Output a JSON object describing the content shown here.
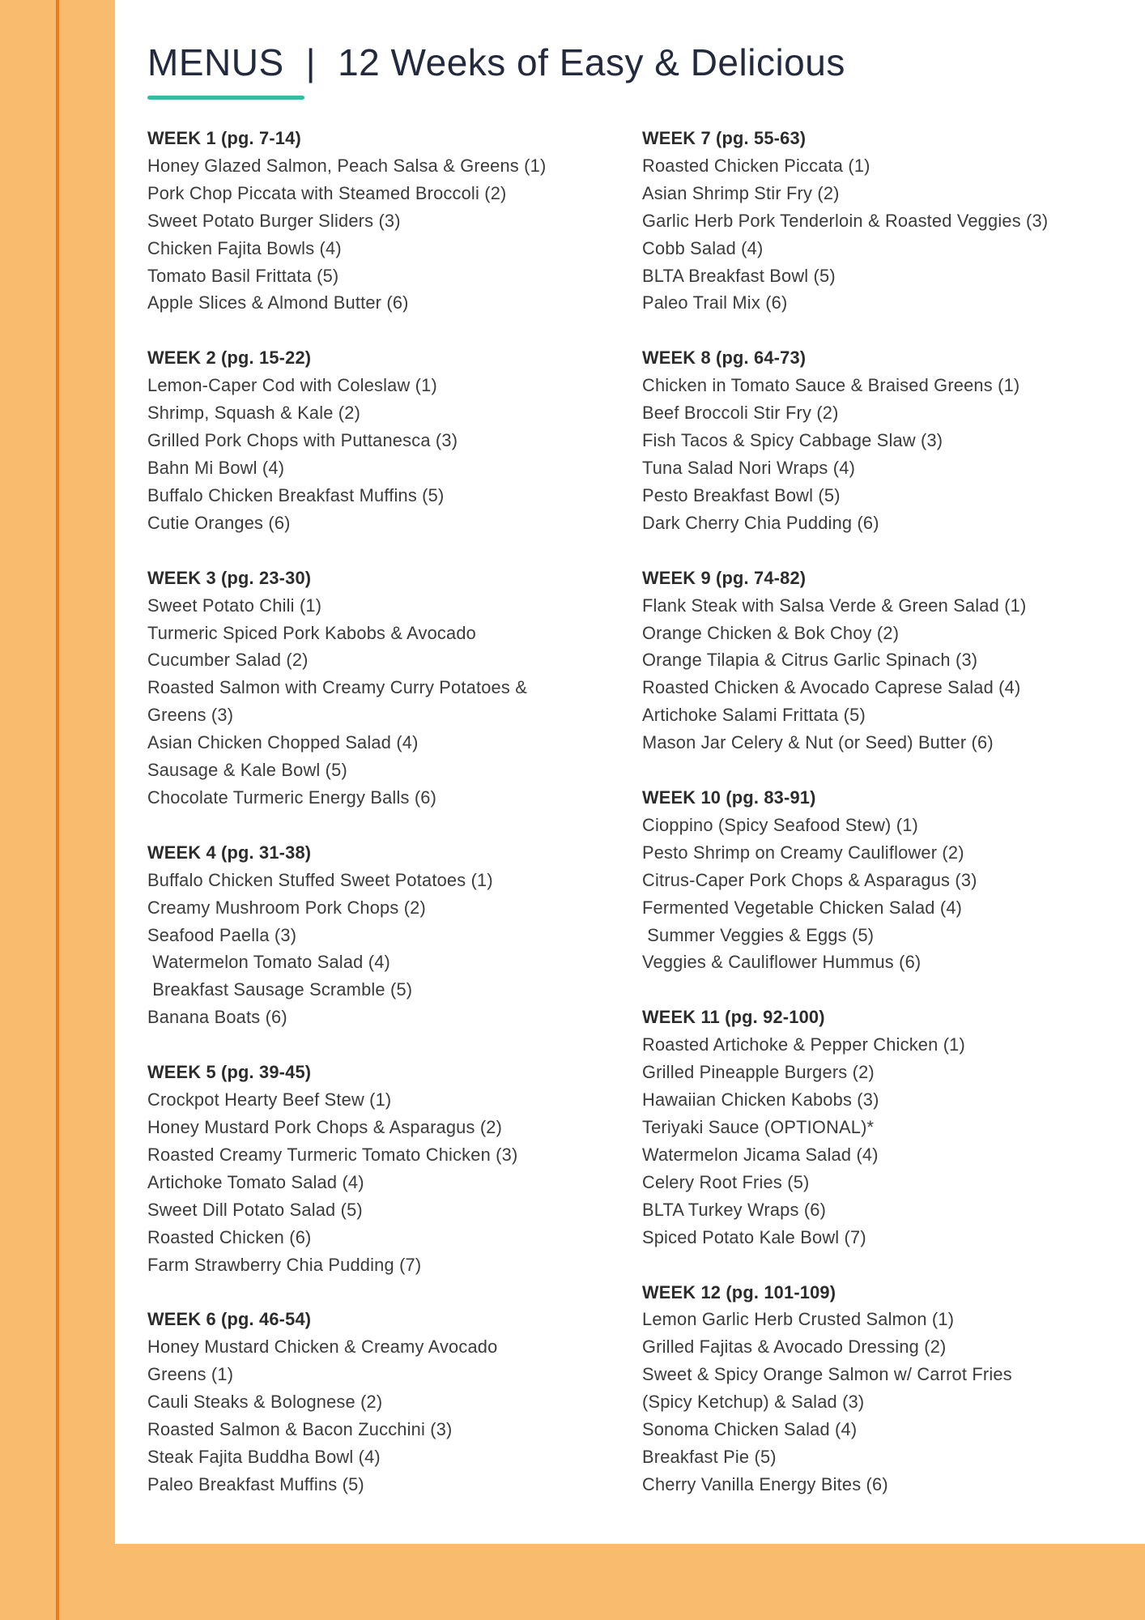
{
  "title": {
    "menus_label": "MENUS",
    "separator": "|",
    "subtitle": "12 Weeks of Easy & Delicious"
  },
  "accent_colors": {
    "sidebar_orange": "#f9bc6f",
    "sidebar_line_orange": "#e87e1e",
    "underline_teal": "#35bda2",
    "title_navy": "#232a3e",
    "header_text": "#2b2b2b",
    "body_text": "#3b3b3b"
  },
  "columns": {
    "left": [
      {
        "header": "WEEK 1 (pg. 7-14)",
        "lines": [
          "Honey Glazed Salmon, Peach Salsa & Greens (1)",
          "Pork Chop Piccata with Steamed Broccoli (2)",
          "Sweet Potato Burger Sliders (3)",
          "Chicken Fajita Bowls (4)",
          "Tomato Basil Frittata (5)",
          "Apple Slices & Almond Butter (6)"
        ]
      },
      {
        "header": "WEEK 2 (pg. 15-22)",
        "lines": [
          "Lemon-Caper Cod with Coleslaw (1)",
          "Shrimp, Squash & Kale (2)",
          "Grilled Pork Chops with Puttanesca (3)",
          "Bahn Mi Bowl (4)",
          "Buffalo Chicken Breakfast Muffins (5)",
          "Cutie Oranges (6)"
        ]
      },
      {
        "header": "WEEK 3 (pg. 23-30)",
        "lines": [
          "Sweet Potato Chili (1)",
          "Turmeric Spiced Pork Kabobs & Avocado",
          "Cucumber Salad (2)",
          "Roasted Salmon with Creamy Curry Potatoes &",
          "Greens (3)",
          "Asian Chicken Chopped Salad (4)",
          "Sausage & Kale Bowl (5)",
          "Chocolate Turmeric Energy Balls (6)"
        ]
      },
      {
        "header": "WEEK 4 (pg. 31-38)",
        "lines": [
          "Buffalo Chicken Stuffed Sweet Potatoes (1)",
          "Creamy Mushroom Pork Chops (2)",
          "Seafood Paella (3)",
          " Watermelon Tomato Salad (4)",
          " Breakfast Sausage Scramble (5)",
          "Banana Boats (6)"
        ]
      },
      {
        "header": "WEEK 5 (pg. 39-45)",
        "lines": [
          "Crockpot Hearty Beef Stew (1)",
          "Honey Mustard Pork Chops & Asparagus (2)",
          "Roasted Creamy Turmeric Tomato Chicken (3)",
          "Artichoke Tomato Salad (4)",
          "Sweet Dill Potato Salad (5)",
          "Roasted Chicken (6)",
          "Farm Strawberry Chia Pudding (7)"
        ]
      },
      {
        "header": "WEEK 6 (pg. 46-54)",
        "lines": [
          "Honey Mustard Chicken & Creamy Avocado",
          "Greens (1)",
          "Cauli Steaks & Bolognese (2)",
          "Roasted Salmon & Bacon Zucchini (3)",
          "Steak Fajita Buddha Bowl (4)",
          "Paleo Breakfast Muffins (5)"
        ]
      }
    ],
    "right": [
      {
        "header": "WEEK 7 (pg. 55-63)",
        "lines": [
          "Roasted Chicken Piccata (1)",
          "Asian Shrimp Stir Fry (2)",
          "Garlic Herb Pork Tenderloin & Roasted Veggies (3)",
          "Cobb Salad (4)",
          "BLTA Breakfast Bowl (5)",
          "Paleo Trail Mix (6)"
        ]
      },
      {
        "header": "WEEK 8 (pg. 64-73)",
        "lines": [
          "Chicken in Tomato Sauce & Braised Greens (1)",
          "Beef Broccoli Stir Fry (2)",
          "Fish Tacos & Spicy Cabbage Slaw (3)",
          "Tuna Salad Nori Wraps (4)",
          "Pesto Breakfast Bowl (5)",
          "Dark Cherry Chia Pudding (6)"
        ]
      },
      {
        "header": "WEEK 9 (pg. 74-82)",
        "lines": [
          "Flank Steak with Salsa Verde & Green Salad (1)",
          "Orange Chicken & Bok Choy (2)",
          "Orange Tilapia & Citrus Garlic Spinach (3)",
          "Roasted Chicken & Avocado Caprese Salad (4)",
          "Artichoke Salami Frittata (5)",
          "Mason Jar Celery & Nut (or Seed) Butter (6)"
        ]
      },
      {
        "header": "WEEK 10 (pg. 83-91)",
        "lines": [
          "Cioppino (Spicy Seafood Stew) (1)",
          "Pesto Shrimp on Creamy Cauliflower (2)",
          "Citrus-Caper Pork Chops & Asparagus (3)",
          "Fermented Vegetable Chicken Salad (4)",
          " Summer Veggies & Eggs (5)",
          "Veggies & Cauliflower Hummus (6)"
        ]
      },
      {
        "header": "WEEK 11 (pg. 92-100)",
        "lines": [
          "Roasted Artichoke & Pepper Chicken (1)",
          "Grilled Pineapple Burgers (2)",
          "Hawaiian Chicken Kabobs (3)",
          "Teriyaki Sauce (OPTIONAL)*",
          "Watermelon Jicama Salad (4)",
          "Celery Root Fries (5)",
          "BLTA Turkey Wraps (6)",
          "Spiced Potato Kale Bowl (7)"
        ]
      },
      {
        "header": "WEEK 12 (pg. 101-109)",
        "lines": [
          "Lemon Garlic Herb Crusted Salmon (1)",
          "Grilled Fajitas & Avocado Dressing (2)",
          "Sweet & Spicy Orange Salmon w/ Carrot Fries",
          "(Spicy Ketchup) & Salad (3)",
          "Sonoma Chicken Salad (4)",
          "Breakfast Pie (5)",
          "Cherry Vanilla Energy Bites (6)"
        ]
      }
    ]
  }
}
